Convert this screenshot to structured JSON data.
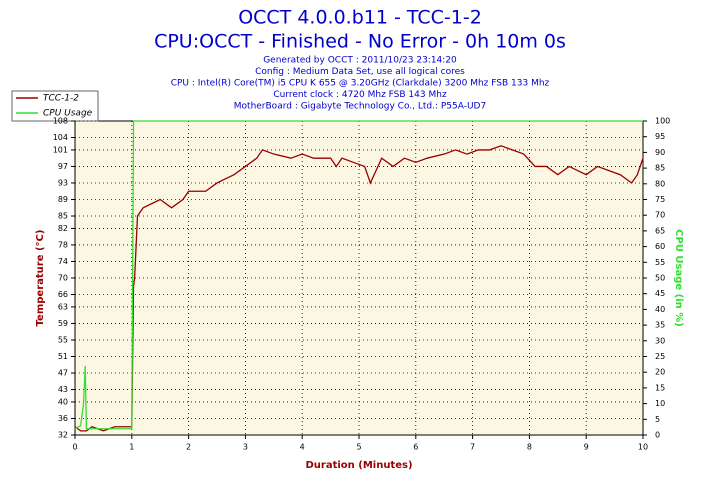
{
  "chart_data": {
    "type": "line",
    "title": "OCCT 4.0.0.b11 - TCC-1-2",
    "subtitle": "CPU:OCCT - Finished - No Error - 0h 10m 0s",
    "info": [
      "Generated by OCCT : 2011/10/23 23:14:20",
      "Config : Medium Data Set, use all logical cores",
      "CPU : Intel(R) Core(TM) i5 CPU K 655 @ 3.20GHz (Clarkdale) 3200 Mhz FSB 133 Mhz",
      "Current clock : 4720 Mhz FSB 143 Mhz",
      "MotherBoard : Gigabyte Technology Co., Ltd.: P55A-UD7"
    ],
    "xlabel": "Duration (Minutes)",
    "ylabel": "Temperature (°C)",
    "y2label": "CPU Usage (in %)",
    "x": [
      0,
      0.1,
      0.15,
      0.18,
      0.2,
      0.3,
      0.5,
      0.7,
      0.9,
      1.0,
      1.03,
      1.05,
      1.1,
      1.2,
      1.5,
      1.7,
      1.9,
      2.0,
      2.3,
      2.5,
      2.8,
      3.0,
      3.2,
      3.3,
      3.5,
      3.8,
      4.0,
      4.2,
      4.5,
      4.6,
      4.7,
      4.9,
      5.1,
      5.2,
      5.4,
      5.6,
      5.8,
      6.0,
      6.2,
      6.5,
      6.7,
      6.9,
      7.1,
      7.3,
      7.5,
      7.7,
      7.9,
      8.1,
      8.3,
      8.5,
      8.7,
      9.0,
      9.2,
      9.4,
      9.6,
      9.8,
      9.9,
      10
    ],
    "series": [
      {
        "name": "TCC-1-2",
        "color": "#990000",
        "values": [
          34,
          33,
          33,
          33,
          33,
          34,
          33,
          34,
          34,
          34,
          68,
          70,
          85,
          87,
          89,
          87,
          89,
          91,
          91,
          93,
          95,
          97,
          99,
          101,
          100,
          99,
          100,
          99,
          99,
          97,
          99,
          98,
          97,
          93,
          99,
          97,
          99,
          98,
          99,
          100,
          101,
          100,
          101,
          101,
          102,
          101,
          100,
          97,
          97,
          95,
          97,
          95,
          97,
          96,
          95,
          93,
          95,
          99
        ]
      },
      {
        "name": "CPU Usage",
        "color": "#33dd33",
        "axis": "y2",
        "values": [
          2,
          3,
          10,
          22,
          2,
          2,
          2,
          2,
          2,
          2,
          100,
          100,
          100,
          100,
          100,
          100,
          100,
          100,
          100,
          100,
          100,
          100,
          100,
          100,
          100,
          100,
          100,
          100,
          100,
          100,
          100,
          100,
          100,
          100,
          100,
          100,
          100,
          100,
          100,
          100,
          100,
          100,
          100,
          100,
          100,
          100,
          100,
          100,
          100,
          100,
          100,
          100,
          100,
          100,
          100,
          100,
          100,
          100
        ]
      }
    ],
    "xlim": [
      0,
      10
    ],
    "xticks": [
      0,
      1,
      2,
      3,
      4,
      5,
      6,
      7,
      8,
      9,
      10
    ],
    "ylim": [
      32,
      108
    ],
    "yticks": [
      32,
      36,
      40,
      43,
      47,
      51,
      55,
      59,
      63,
      66,
      70,
      74,
      78,
      82,
      85,
      89,
      93,
      97,
      101,
      104,
      108
    ],
    "y2lim": [
      0,
      100
    ],
    "y2ticks": [
      0,
      5,
      10,
      15,
      20,
      25,
      30,
      35,
      40,
      45,
      50,
      55,
      60,
      65,
      70,
      75,
      80,
      85,
      90,
      95,
      100
    ],
    "grid": true,
    "legend": "top-left"
  }
}
